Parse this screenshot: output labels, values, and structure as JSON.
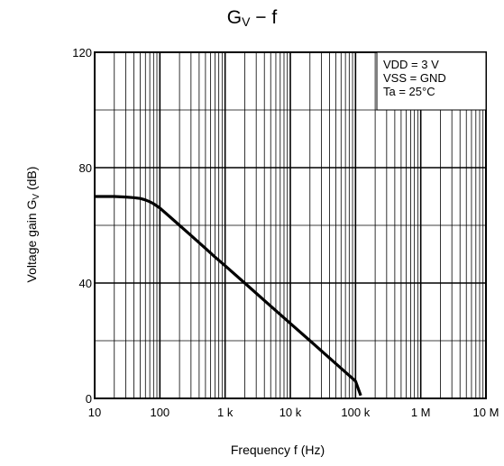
{
  "chart_data": {
    "type": "line",
    "title": "G",
    "title_sub": "V",
    "title_tail": " − f",
    "xlabel": "Frequency   f   (Hz)",
    "ylabel": "Voltage gain    G",
    "ylabel_sub": "V",
    "ylabel_tail": "    (dB)",
    "x_scale": "log",
    "xlim": [
      10,
      10000000
    ],
    "ylim": [
      0,
      120
    ],
    "grid": true,
    "x_ticks": [
      {
        "value": 10,
        "label": "10"
      },
      {
        "value": 100,
        "label": "100"
      },
      {
        "value": 1000,
        "label": "1 k"
      },
      {
        "value": 10000,
        "label": "10 k"
      },
      {
        "value": 100000,
        "label": "100 k"
      },
      {
        "value": 1000000,
        "label": "1 M"
      },
      {
        "value": 10000000,
        "label": "10 M"
      }
    ],
    "y_ticks": [
      {
        "value": 0,
        "label": "0"
      },
      {
        "value": 40,
        "label": "40"
      },
      {
        "value": 80,
        "label": "80"
      },
      {
        "value": 120,
        "label": "120"
      }
    ],
    "y_minor": [
      20,
      60,
      100
    ],
    "conditions": [
      "VDD = 3 V",
      "VSS = GND",
      "Ta = 25°C"
    ],
    "legend_position": "top-right",
    "series": [
      {
        "x": [
          10,
          20,
          30,
          40,
          50,
          60,
          70,
          80,
          100,
          150,
          200,
          300,
          500,
          700,
          1000,
          2000,
          5000,
          10000,
          20000,
          50000,
          100000,
          120000
        ],
        "y": [
          70,
          70,
          69.8,
          69.6,
          69.3,
          68.8,
          68.2,
          67.5,
          66,
          62.5,
          60,
          56.5,
          52,
          49,
          46,
          40,
          32,
          26,
          20,
          12,
          6,
          1
        ]
      }
    ]
  }
}
